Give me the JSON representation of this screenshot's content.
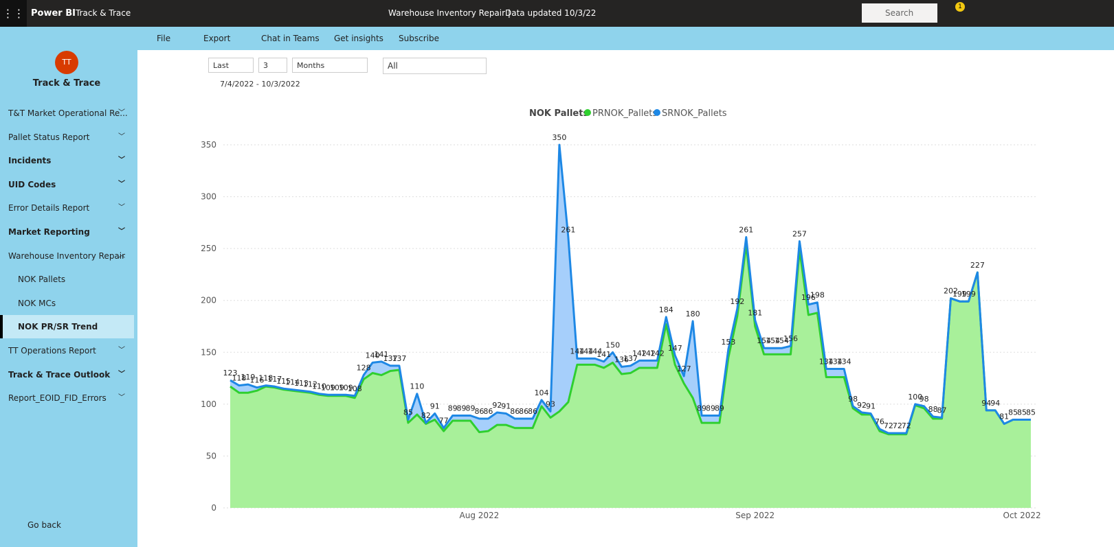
{
  "header": {
    "app": "Power BI",
    "workspace": "Track & Trace",
    "report": "Warehouse Inventory Repair |",
    "updated": "Data updated 10/3/22",
    "search": "Search",
    "notifications": 1
  },
  "toolbar": [
    "File",
    "Export",
    "Chat in Teams",
    "Get insights",
    "Subscribe"
  ],
  "nav": {
    "avatar": "TT",
    "title": "Track & Trace",
    "go_back": "Go back",
    "items": [
      {
        "label": "T&T Market Operational Re...",
        "bold": false
      },
      {
        "label": "Pallet Status Report",
        "bold": false
      },
      {
        "label": "Incidents",
        "bold": true
      },
      {
        "label": "UID Codes",
        "bold": true
      },
      {
        "label": "Error Details Report",
        "bold": false
      },
      {
        "label": "Market Reporting",
        "bold": true
      },
      {
        "label": "Warehouse Inventory Repair",
        "bold": false,
        "expanded": true,
        "children": [
          {
            "label": "NOK Pallets",
            "selected": false
          },
          {
            "label": "NOK MCs",
            "selected": false
          },
          {
            "label": "NOK PR/SR Trend",
            "selected": true
          }
        ]
      },
      {
        "label": "TT Operations Report",
        "bold": false
      },
      {
        "label": "Track & Trace Outlook",
        "bold": true
      },
      {
        "label": "Report_EOID_FID_Errors",
        "bold": false
      }
    ]
  },
  "filters": {
    "period": "Last",
    "count": "3",
    "unit": "Months",
    "selection": "All",
    "range": "7/4/2022 - 10/3/2022"
  },
  "chart_data": {
    "type": "area",
    "title": "NOK Pallets",
    "categories": [
      null,
      null,
      null,
      null,
      null,
      null,
      null,
      null,
      null,
      null,
      null,
      null,
      null,
      null,
      null,
      null,
      null,
      null,
      null,
      null,
      null,
      null,
      null,
      null,
      null,
      null,
      null,
      null,
      "Aug 2022",
      null,
      null,
      null,
      null,
      null,
      null,
      null,
      null,
      null,
      null,
      null,
      null,
      null,
      null,
      null,
      null,
      null,
      null,
      null,
      null,
      null,
      null,
      null,
      null,
      null,
      null,
      null,
      null,
      null,
      null,
      "Sep 2022",
      null,
      null,
      null,
      null,
      null,
      null,
      null,
      null,
      null,
      null,
      null,
      null,
      null,
      null,
      null,
      null,
      null,
      null,
      null,
      null,
      null,
      null,
      null,
      null,
      null,
      null,
      null,
      null,
      null,
      "Oct 2022",
      null
    ],
    "series": [
      {
        "name": "PRNOK_Pallets",
        "color": "#2fcf2f",
        "fill": "#a8f09a",
        "values": [
          117,
          111,
          111,
          113,
          117,
          116,
          114,
          113,
          112,
          111,
          109,
          108,
          108,
          108,
          106,
          124,
          130,
          128,
          132,
          133,
          82,
          90,
          81,
          85,
          74,
          84,
          84,
          84,
          73,
          74,
          80,
          80,
          77,
          77,
          77,
          98,
          87,
          93,
          102,
          138,
          138,
          138,
          135,
          140,
          129,
          130,
          135,
          135,
          135,
          177,
          138,
          120,
          106,
          82,
          82,
          82,
          145,
          185,
          254,
          175,
          148,
          148,
          148,
          148,
          249,
          186,
          188,
          126,
          126,
          126,
          96,
          90,
          90,
          74,
          71,
          71,
          71,
          99,
          96,
          86,
          86,
          202,
          199,
          199,
          227,
          94,
          94,
          81,
          85,
          85,
          85
        ]
      },
      {
        "name": "SRNOK_Pallets",
        "color": "#1e88e5",
        "fill": "#a6cffb",
        "values": [
          123,
          118,
          119,
          116,
          118,
          117,
          115,
          114,
          113,
          112,
          110,
          109,
          109,
          109,
          108,
          128,
          140,
          141,
          137,
          137,
          85,
          110,
          82,
          91,
          77,
          89,
          89,
          89,
          86,
          86,
          92,
          91,
          86,
          86,
          86,
          104,
          93,
          350,
          261,
          144,
          144,
          144,
          141,
          150,
          136,
          137,
          142,
          142,
          142,
          184,
          147,
          127,
          180,
          89,
          89,
          89,
          153,
          192,
          261,
          181,
          154,
          154,
          154,
          156,
          257,
          196,
          198,
          134,
          134,
          134,
          98,
          92,
          91,
          76,
          72,
          72,
          72,
          100,
          98,
          88,
          87,
          202,
          199,
          199,
          227,
          94,
          94,
          81,
          85,
          85,
          85
        ]
      }
    ],
    "ylim": [
      0,
      350
    ],
    "yticks": [
      0,
      50,
      100,
      150,
      200,
      250,
      300,
      350
    ],
    "grid": true
  }
}
